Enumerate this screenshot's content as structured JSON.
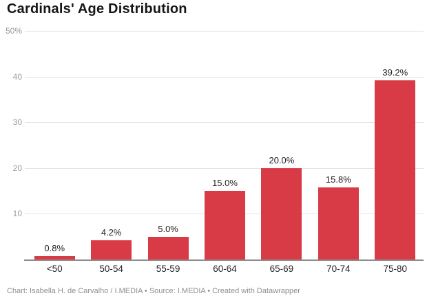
{
  "title": "Cardinals' Age Distribution",
  "footer": {
    "text": "Chart: Isabella H. de Carvalho / I.MEDIA • Source: I.MEDIA • Created with Datawrapper"
  },
  "chart_data": {
    "type": "bar",
    "title": "Cardinals' Age Distribution",
    "categories": [
      "<50",
      "50-54",
      "55-59",
      "60-64",
      "65-69",
      "70-74",
      "75-80"
    ],
    "values": [
      0.8,
      4.2,
      5.0,
      15.0,
      20.0,
      15.8,
      39.2
    ],
    "value_labels": [
      "0.8%",
      "4.2%",
      "5.0%",
      "15.0%",
      "20.0%",
      "15.8%",
      "39.2%"
    ],
    "xlabel": "",
    "ylabel": "",
    "ylim": [
      0,
      50
    ],
    "y_ticks": [
      {
        "value": 50,
        "label": "50%"
      },
      {
        "value": 40,
        "label": "40"
      },
      {
        "value": 30,
        "label": "30"
      },
      {
        "value": 20,
        "label": "20"
      },
      {
        "value": 10,
        "label": "10"
      }
    ],
    "grid": true,
    "legend": "none",
    "bar_color": "#d93b46"
  },
  "colors": {
    "background": "#ffffff",
    "bar": "#d93b46",
    "gridline": "#e4e4e4",
    "baseline": "#8c8c8c",
    "axis_text": "#9b9b9b",
    "label_text": "#1f1f1f",
    "footer_text": "#8f8f8f"
  }
}
